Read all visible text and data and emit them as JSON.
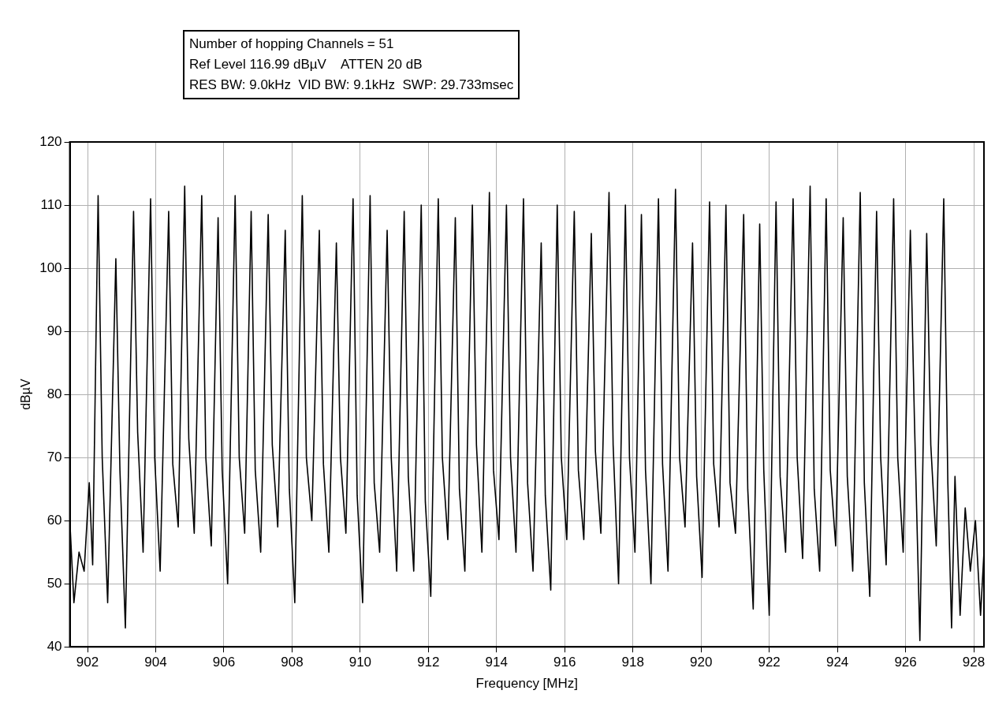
{
  "chart_data": {
    "type": "line",
    "title": "Number of hopping Channels = 51",
    "subtitle": "Ref Level 116.99 dBµV    ATTEN 20 dB",
    "annotations": [
      "RES BW: 9.0kHz  VID BW: 9.1kHz  SWP: 29.733msec"
    ],
    "xlabel": "Frequency [MHz]",
    "ylabel": "dBµV",
    "xlim": [
      901.48,
      928.3
    ],
    "ylim": [
      40,
      120
    ],
    "xticks": [
      902,
      904,
      906,
      908,
      910,
      912,
      914,
      916,
      918,
      920,
      922,
      924,
      926,
      928
    ],
    "yticks": [
      40,
      50,
      60,
      70,
      80,
      90,
      100,
      110,
      120
    ],
    "grid": true,
    "legend": false,
    "marker": "none",
    "line_style": "solid",
    "series": [
      {
        "color": "#000000",
        "x": [
          901.48,
          901.6,
          901.75,
          901.9,
          902.05,
          902.15,
          902.31,
          902.43,
          902.59,
          902.83,
          902.95,
          903.11,
          903.35,
          903.47,
          903.63,
          903.85,
          903.97,
          904.13,
          904.38,
          904.5,
          904.66,
          904.85,
          904.97,
          905.13,
          905.35,
          905.47,
          905.63,
          905.83,
          905.95,
          906.11,
          906.33,
          906.45,
          906.61,
          906.8,
          906.92,
          907.08,
          907.3,
          907.42,
          907.58,
          907.8,
          907.92,
          908.08,
          908.3,
          908.42,
          908.58,
          908.8,
          908.92,
          909.08,
          909.3,
          909.42,
          909.58,
          909.79,
          909.91,
          910.07,
          910.29,
          910.41,
          910.57,
          910.79,
          910.91,
          911.07,
          911.29,
          911.41,
          911.57,
          911.79,
          911.91,
          912.07,
          912.29,
          912.41,
          912.57,
          912.79,
          912.91,
          913.07,
          913.29,
          913.41,
          913.57,
          913.79,
          913.91,
          914.07,
          914.29,
          914.41,
          914.57,
          914.79,
          914.91,
          915.07,
          915.31,
          915.43,
          915.59,
          915.78,
          915.9,
          916.06,
          916.28,
          916.4,
          916.56,
          916.78,
          916.9,
          917.06,
          917.3,
          917.42,
          917.58,
          917.78,
          917.9,
          918.06,
          918.25,
          918.37,
          918.53,
          918.75,
          918.87,
          919.03,
          919.25,
          919.37,
          919.53,
          919.75,
          919.87,
          920.03,
          920.25,
          920.37,
          920.53,
          920.73,
          920.85,
          921.01,
          921.25,
          921.37,
          921.53,
          921.72,
          921.84,
          922.0,
          922.2,
          922.32,
          922.48,
          922.7,
          922.82,
          922.98,
          923.2,
          923.32,
          923.48,
          923.67,
          923.79,
          923.95,
          924.17,
          924.29,
          924.45,
          924.67,
          924.79,
          924.95,
          925.15,
          925.27,
          925.43,
          925.65,
          925.77,
          925.93,
          926.14,
          926.26,
          926.42,
          926.62,
          926.74,
          926.9,
          927.12,
          927.24,
          927.35,
          927.45,
          927.6,
          927.75,
          927.9,
          928.05,
          928.2,
          928.3
        ],
        "values": [
          60,
          47,
          55,
          52,
          66,
          53,
          111.5,
          70,
          47,
          101.5,
          68,
          43,
          109,
          74,
          55,
          111,
          70,
          52,
          109,
          69,
          59,
          113,
          73,
          58,
          111.5,
          70,
          56,
          108,
          68,
          50,
          111.5,
          70,
          58,
          109,
          68,
          55,
          108.5,
          72,
          59,
          106,
          65,
          47,
          111.5,
          70,
          60,
          106,
          69,
          55,
          104,
          70,
          58,
          111,
          64,
          47,
          111.5,
          66,
          55,
          106,
          70,
          52,
          109,
          67,
          52,
          110,
          63,
          48,
          111,
          70,
          57,
          108,
          65,
          52,
          110,
          72,
          55,
          112,
          68,
          57,
          110,
          70,
          55,
          111,
          66,
          52,
          104,
          64,
          49,
          110,
          70,
          57,
          109,
          68,
          57,
          105.5,
          71,
          58,
          112,
          72,
          50,
          110,
          70,
          55,
          108.5,
          68,
          50,
          111,
          69,
          52,
          112.5,
          70,
          59,
          104,
          67,
          51,
          110.5,
          69,
          59,
          110,
          66,
          58,
          108.5,
          65,
          46,
          107,
          68,
          45,
          110.5,
          67,
          55,
          111,
          70,
          54,
          113,
          65,
          52,
          111,
          68,
          56,
          108,
          67,
          52,
          112,
          66,
          48,
          109,
          70,
          53,
          111,
          70,
          55,
          106,
          76,
          41,
          105.5,
          72,
          56,
          111,
          66,
          43,
          67,
          45,
          62,
          52,
          60,
          45,
          55
        ]
      }
    ]
  }
}
